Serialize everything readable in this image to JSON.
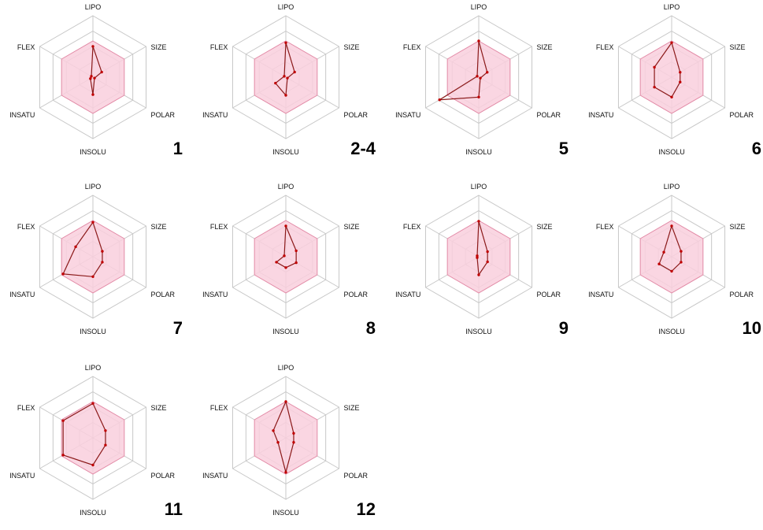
{
  "axes": [
    "LIPO",
    "SIZE",
    "POLAR",
    "INSOLU",
    "INSATU",
    "FLEX"
  ],
  "colors": {
    "optimal_zone": "#f9cfdd",
    "optimal_border": "#e28aa6",
    "property_line": "#8b1a1a",
    "grid": "#c8c8c8"
  },
  "chart_data": [
    {
      "type": "radar",
      "label": "1",
      "axes": [
        "LIPO",
        "SIZE",
        "POLAR",
        "INSOLU",
        "INSATU",
        "FLEX"
      ],
      "values": [
        0.85,
        0.28,
        0.05,
        0.48,
        0.08,
        0.05
      ],
      "optimal_range": [
        0,
        1
      ],
      "grid": true
    },
    {
      "type": "radar",
      "label": "2-4",
      "axes": [
        "LIPO",
        "SIZE",
        "POLAR",
        "INSOLU",
        "INSATU",
        "FLEX"
      ],
      "values": [
        0.95,
        0.28,
        0.05,
        0.5,
        0.33,
        0.05
      ],
      "optimal_range": [
        0,
        1
      ],
      "grid": true
    },
    {
      "type": "radar",
      "label": "5",
      "axes": [
        "LIPO",
        "SIZE",
        "POLAR",
        "INSOLU",
        "INSATU",
        "FLEX"
      ],
      "values": [
        1.0,
        0.27,
        0.05,
        0.55,
        1.25,
        0.05
      ],
      "optimal_range": [
        0,
        1
      ],
      "grid": true
    },
    {
      "type": "radar",
      "label": "6",
      "axes": [
        "LIPO",
        "SIZE",
        "POLAR",
        "INSOLU",
        "INSATU",
        "FLEX"
      ],
      "values": [
        0.95,
        0.27,
        0.27,
        0.55,
        0.55,
        0.55
      ],
      "optimal_range": [
        0,
        1
      ],
      "grid": true
    },
    {
      "type": "radar",
      "label": "7",
      "axes": [
        "LIPO",
        "SIZE",
        "POLAR",
        "INSOLU",
        "INSATU",
        "FLEX"
      ],
      "values": [
        0.95,
        0.3,
        0.3,
        0.55,
        0.95,
        0.55
      ],
      "optimal_range": [
        0,
        1
      ],
      "grid": true
    },
    {
      "type": "radar",
      "label": "8",
      "axes": [
        "LIPO",
        "SIZE",
        "POLAR",
        "INSOLU",
        "INSATU",
        "FLEX"
      ],
      "values": [
        0.85,
        0.33,
        0.33,
        0.3,
        0.3,
        0.05
      ],
      "optimal_range": [
        0,
        1
      ],
      "grid": true
    },
    {
      "type": "radar",
      "label": "9",
      "axes": [
        "LIPO",
        "SIZE",
        "POLAR",
        "INSOLU",
        "INSATU",
        "FLEX"
      ],
      "values": [
        0.98,
        0.28,
        0.28,
        0.5,
        0.05,
        0.05
      ],
      "optimal_range": [
        0,
        1
      ],
      "grid": true
    },
    {
      "type": "radar",
      "label": "10",
      "axes": [
        "LIPO",
        "SIZE",
        "POLAR",
        "INSOLU",
        "INSATU",
        "FLEX"
      ],
      "values": [
        0.85,
        0.3,
        0.3,
        0.4,
        0.4,
        0.25
      ],
      "optimal_range": [
        0,
        1
      ],
      "grid": true
    },
    {
      "type": "radar",
      "label": "11",
      "axes": [
        "LIPO",
        "SIZE",
        "POLAR",
        "INSOLU",
        "INSATU",
        "FLEX"
      ],
      "values": [
        0.95,
        0.4,
        0.4,
        0.75,
        0.95,
        0.95
      ],
      "optimal_range": [
        0,
        1
      ],
      "grid": true
    },
    {
      "type": "radar",
      "label": "12",
      "axes": [
        "LIPO",
        "SIZE",
        "POLAR",
        "INSOLU",
        "INSATU",
        "FLEX"
      ],
      "values": [
        1.0,
        0.25,
        0.25,
        0.95,
        0.25,
        0.4
      ],
      "optimal_range": [
        0,
        1
      ],
      "grid": true
    }
  ]
}
